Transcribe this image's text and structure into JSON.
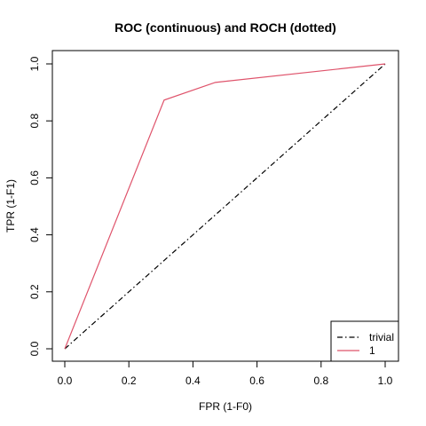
{
  "chart_data": {
    "type": "line",
    "title": "ROC (continuous) and ROCH (dotted)",
    "xlabel": "FPR (1-F0)",
    "ylabel": "TPR (1-F1)",
    "xlim": [
      0,
      1
    ],
    "ylim": [
      0,
      1
    ],
    "xticks": [
      "0.0",
      "0.2",
      "0.4",
      "0.6",
      "0.8",
      "1.0"
    ],
    "yticks": [
      "0.0",
      "0.2",
      "0.4",
      "0.6",
      "0.8",
      "1.0"
    ],
    "grid": false,
    "legend_position": "bottom-right",
    "series": [
      {
        "name": "trivial",
        "color": "#000000",
        "linestyle": "dashdot",
        "x": [
          0,
          1
        ],
        "y": [
          0,
          1
        ]
      },
      {
        "name": "1",
        "color": "#DF536B",
        "linestyle": "solid",
        "x": [
          0,
          0.31,
          0.47,
          1.0
        ],
        "y": [
          0,
          0.873,
          0.935,
          1.0
        ]
      }
    ]
  }
}
